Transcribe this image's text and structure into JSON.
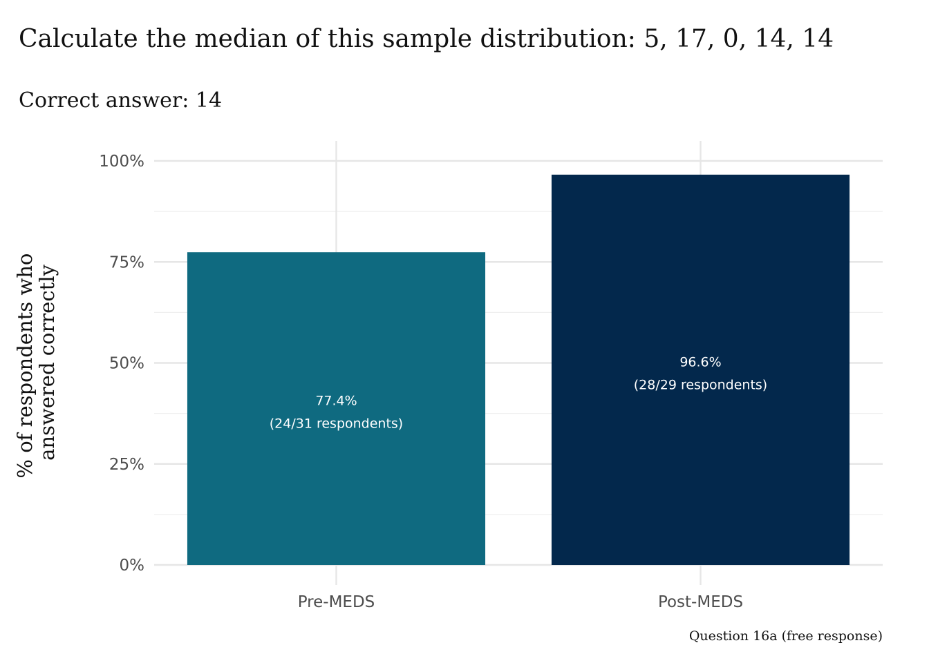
{
  "chart_data": {
    "type": "bar",
    "title": "Calculate the median of this sample distribution: 5, 17, 0, 14, 14",
    "subtitle": "Correct answer: 14",
    "xlabel": "",
    "ylabel_lines": [
      "% of respondents who",
      "answered correctly"
    ],
    "caption": "Question 16a (free response)",
    "categories": [
      "Pre-MEDS",
      "Post-MEDS"
    ],
    "values": [
      77.4,
      96.6
    ],
    "value_labels": [
      "77.4%",
      "96.6%"
    ],
    "respondent_labels": [
      "(24/31 respondents)",
      "(28/29 respondents)"
    ],
    "colors": [
      "#0f6a80",
      "#03284c"
    ],
    "ylim": [
      0,
      100
    ],
    "yticks": [
      0,
      25,
      50,
      75,
      100
    ],
    "ytick_labels": [
      "0%",
      "25%",
      "50%",
      "75%",
      "100%"
    ],
    "grid": true,
    "legend": "none"
  }
}
